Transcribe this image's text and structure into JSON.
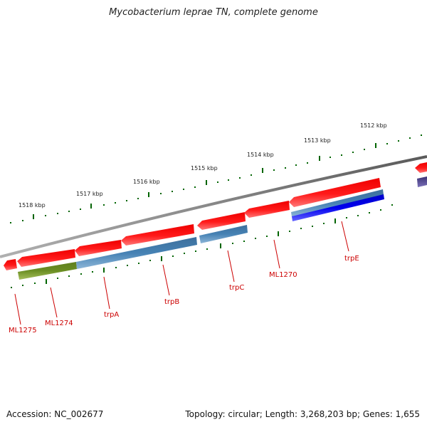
{
  "title": "Mycobacterium leprae TN, complete genome",
  "accession_text": "Accession: NC_002677",
  "summary_text": "Topology: circular; Length: 3,268,203 bp; Genes: 1,655",
  "scale_ticks": [
    {
      "label": "1518 kbp"
    },
    {
      "label": "1517 kbp"
    },
    {
      "label": "1516 kbp"
    },
    {
      "label": "1515 kbp"
    },
    {
      "label": "1514 kbp"
    },
    {
      "label": "1513 kbp"
    },
    {
      "label": "1512 kbp"
    }
  ],
  "gene_labels": [
    {
      "text": "ML1275"
    },
    {
      "text": "ML1274"
    },
    {
      "text": "trpA"
    },
    {
      "text": "trpB"
    },
    {
      "text": "trpC"
    },
    {
      "text": "ML1270"
    },
    {
      "text": "trpE"
    }
  ],
  "colors": {
    "backbone": "#808080",
    "gene_red": "#ee0000",
    "gene_red_light": "#ff7777",
    "feature_blue": "#4682b4",
    "feature_blue_light": "#8db6d8",
    "feature_olive": "#6b8e23",
    "feature_olive_light": "#a6bf5c",
    "feature_darkblue": "#0000dd",
    "feature_darkblue_light": "#6666ff",
    "feature_slate": "#483d8b",
    "tick_green": "#006400",
    "label_red": "#cc0000"
  }
}
